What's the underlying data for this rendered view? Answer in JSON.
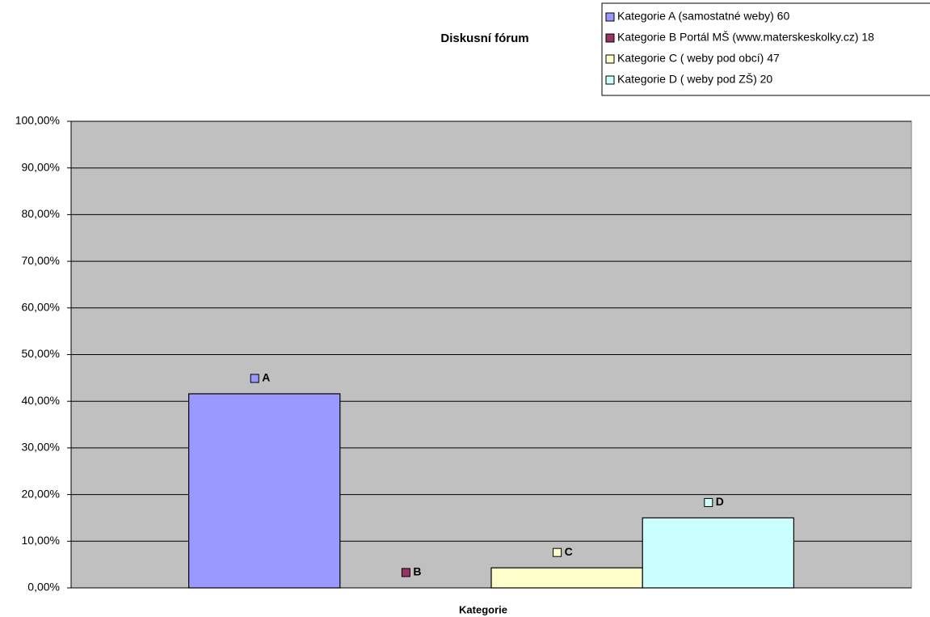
{
  "chart_data": {
    "type": "bar",
    "title": "Diskusní fórum",
    "x_label": "Kategorie",
    "categories": [
      null
    ],
    "series": [
      {
        "name": "Kategorie A (samostatné weby) 60",
        "color": "#9999ff",
        "values": [
          41.6
        ],
        "value_labels": [
          "A"
        ]
      },
      {
        "name": "Kategorie B Portál MŠ (www.materskeskolky.cz) 18",
        "color": "#993366",
        "values": [
          0
        ],
        "value_labels": [
          "B"
        ]
      },
      {
        "name": "Kategorie C ( weby pod obcí) 47",
        "color": "#ffffcc",
        "values": [
          4.3
        ],
        "value_labels": [
          "C"
        ]
      },
      {
        "name": "Kategorie D ( weby pod ZŠ) 20",
        "color": "#ccffff",
        "values": [
          15
        ],
        "value_labels": [
          "D"
        ]
      }
    ],
    "ylim": [
      0,
      100
    ],
    "yticks": [
      {
        "value": 0,
        "label": "0,00%"
      },
      {
        "value": 10,
        "label": "10,00%"
      },
      {
        "value": 20,
        "label": "20,00%"
      },
      {
        "value": 30,
        "label": "30,00%"
      },
      {
        "value": 40,
        "label": "40,00%"
      },
      {
        "value": 50,
        "label": "50,00%"
      },
      {
        "value": 60,
        "label": "60,00%"
      },
      {
        "value": 70,
        "label": "70,00%"
      },
      {
        "value": 80,
        "label": "80,00%"
      },
      {
        "value": 90,
        "label": "90,00%"
      },
      {
        "value": 100,
        "label": "100,00%"
      }
    ],
    "grid": true,
    "legend": "top-right",
    "plot_background": "#c0c0c0"
  }
}
